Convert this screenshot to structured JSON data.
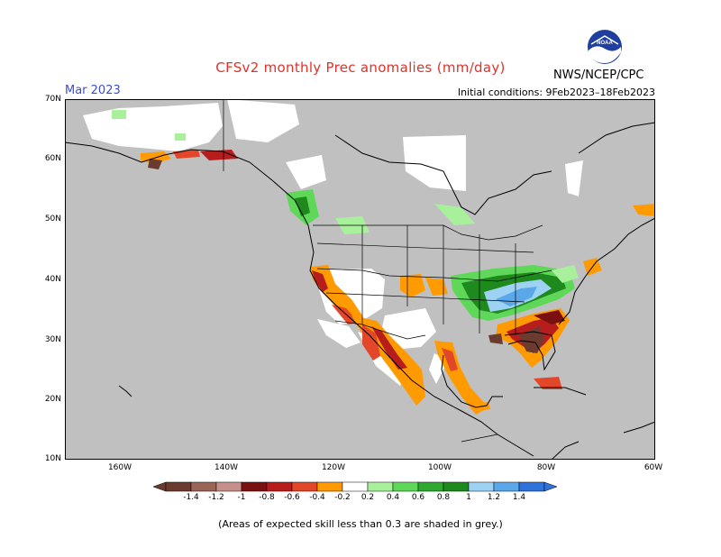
{
  "title": "CFSv2 monthly Prec anomalies (mm/day)",
  "month": "Mar 2023",
  "initial_conditions": "Initial conditions: 9Feb2023–18Feb2023",
  "agency": "NWS/NCEP/CPC",
  "logo_icon": "noaa-logo-icon",
  "footnote": "(Areas of expected skill less than 0.3 are shaded in grey.)",
  "lat_labels": [
    "70N",
    "60N",
    "50N",
    "40N",
    "30N",
    "20N",
    "10N"
  ],
  "lon_labels": [
    "160W",
    "140W",
    "120W",
    "100W",
    "80W",
    "60W"
  ],
  "colorbar": {
    "labels": [
      "-1.4",
      "-1.2",
      "-1",
      "-0.8",
      "-0.6",
      "-0.4",
      "-0.2",
      "0.2",
      "0.4",
      "0.6",
      "0.8",
      "1",
      "1.2",
      "1.4"
    ],
    "colors": [
      "#6b3b2f",
      "#9a6456",
      "#c5908a",
      "#7a1010",
      "#b81d1d",
      "#e2472a",
      "#ff9a00",
      "#ffffff",
      "#a8f09c",
      "#5fd85a",
      "#2ea82e",
      "#1e8a1e",
      "#9ed2f2",
      "#5aa8ea",
      "#2e72dc"
    ],
    "skill_grey": "#c0c0c0",
    "unshaded": "#ffffff"
  }
}
